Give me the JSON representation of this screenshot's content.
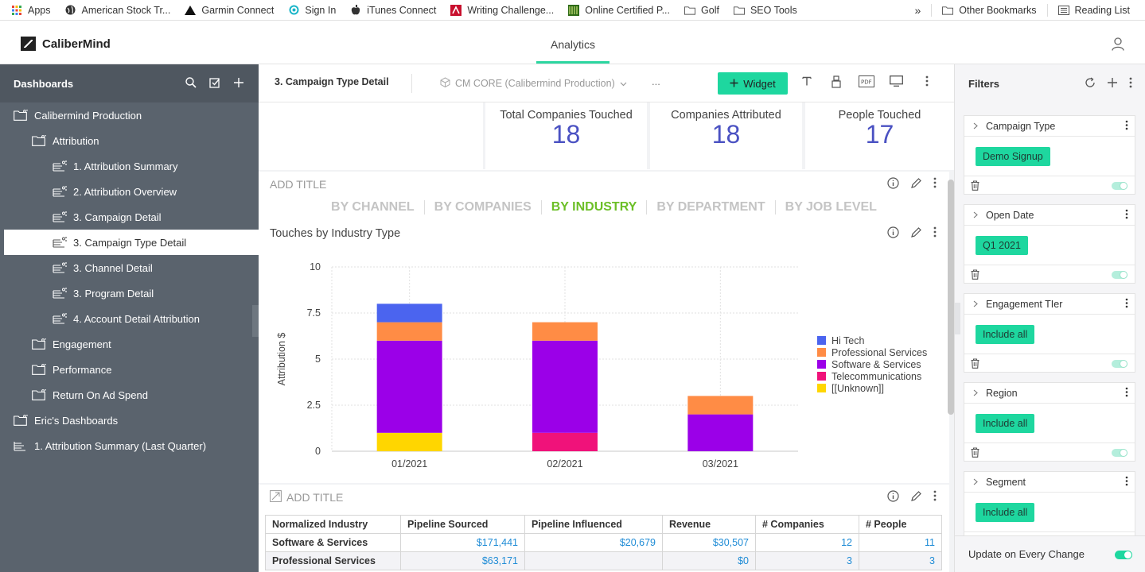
{
  "bookmarks": {
    "items": [
      {
        "label": "Apps",
        "icon": "apps-grid-icon"
      },
      {
        "label": "American Stock Tr...",
        "icon": "globe-icon"
      },
      {
        "label": "Garmin Connect",
        "icon": "garmin-triangle-icon"
      },
      {
        "label": "Sign In",
        "icon": "swirl-icon"
      },
      {
        "label": "iTunes Connect",
        "icon": "apple-icon"
      },
      {
        "label": "Writing Challenge...",
        "icon": "red-logo-icon"
      },
      {
        "label": "Online Certified P...",
        "icon": "green-logo-icon"
      },
      {
        "label": "Golf",
        "icon": "folder-icon"
      },
      {
        "label": "SEO Tools",
        "icon": "folder-icon"
      }
    ],
    "overflow": "»",
    "other_bookmarks": "Other Bookmarks",
    "reading_list": "Reading List"
  },
  "header": {
    "brand": "CaliberMind",
    "tab": "Analytics",
    "accent_color": "#2bd6a0"
  },
  "sidebar": {
    "title": "Dashboards",
    "items": [
      {
        "label": "Calibermind Production",
        "level": 0,
        "icon": "folder-share-icon"
      },
      {
        "label": "Attribution",
        "level": 1,
        "icon": "folder-share-icon"
      },
      {
        "label": "1. Attribution Summary",
        "level": 2,
        "icon": "dashboard-share-icon"
      },
      {
        "label": "2. Attribution Overview",
        "level": 2,
        "icon": "dashboard-share-icon"
      },
      {
        "label": "3. Campaign Detail",
        "level": 2,
        "icon": "dashboard-share-icon"
      },
      {
        "label": "3. Campaign Type Detail",
        "level": 2,
        "icon": "dashboard-share-icon",
        "active": true
      },
      {
        "label": "3. Channel Detail",
        "level": 2,
        "icon": "dashboard-share-icon"
      },
      {
        "label": "3. Program Detail",
        "level": 2,
        "icon": "dashboard-share-icon"
      },
      {
        "label": "4. Account Detail Attribution",
        "level": 2,
        "icon": "dashboard-share-icon"
      },
      {
        "label": "Engagement",
        "level": 1,
        "icon": "folder-share-icon"
      },
      {
        "label": "Performance",
        "level": 1,
        "icon": "folder-share-icon"
      },
      {
        "label": "Return On Ad Spend",
        "level": 1,
        "icon": "folder-share-icon"
      },
      {
        "label": "Eric's Dashboards",
        "level": 0,
        "icon": "folder-share-icon"
      },
      {
        "label": "1. Attribution Summary (Last Quarter)",
        "level": 0,
        "icon": "dashboard-icon"
      }
    ]
  },
  "toolbar": {
    "dashboard_title": "3. Campaign Type Detail",
    "datasource": "CM CORE (Calibermind Production)",
    "more": "...",
    "widget_label": "Widget",
    "widget_color": "#1ed79f"
  },
  "kpis": [
    {
      "label": "Total Companies Touched",
      "value": "18"
    },
    {
      "label": "Companies Attributed",
      "value": "18"
    },
    {
      "label": "People Touched",
      "value": "17"
    }
  ],
  "tabs_panel": {
    "title": "ADD TITLE",
    "tabs": [
      "BY CHANNEL",
      "BY COMPANIES",
      "BY INDUSTRY",
      "BY DEPARTMENT",
      "BY JOB LEVEL"
    ],
    "active_tab": "BY INDUSTRY",
    "active_color": "#6cbf27"
  },
  "chart_panel": {
    "title": "Touches by Industry Type"
  },
  "chart_data": {
    "type": "bar",
    "stacked": true,
    "title": "Touches by Industry Type",
    "ylabel": "Attribution $",
    "xlabel": "",
    "categories": [
      "01/2021",
      "02/2021",
      "03/2021"
    ],
    "ylim": [
      0,
      10
    ],
    "yticks": [
      "0",
      "2.5",
      "5",
      "7.5",
      "10"
    ],
    "grid": true,
    "legend_position": "right",
    "series": [
      {
        "name": "[[Unknown]]",
        "color": "#ffd600",
        "values": [
          1,
          0,
          0
        ]
      },
      {
        "name": "Telecommunications",
        "color": "#f0127a",
        "values": [
          0,
          1,
          0
        ]
      },
      {
        "name": "Software & Services",
        "color": "#9b00e8",
        "values": [
          5,
          5,
          2
        ]
      },
      {
        "name": "Professional Services",
        "color": "#ff8c45",
        "values": [
          1,
          1,
          1
        ]
      },
      {
        "name": "Hi Tech",
        "color": "#4b64ef",
        "values": [
          1,
          0,
          0
        ]
      }
    ],
    "legend_order": [
      "Hi Tech",
      "Professional Services",
      "Software & Services",
      "Telecommunications",
      "[[Unknown]]"
    ]
  },
  "table_panel": {
    "title": "ADD TITLE",
    "columns": [
      "Normalized Industry",
      "Pipeline Sourced",
      "Pipeline Influenced",
      "Revenue",
      "# Companies",
      "# People"
    ],
    "rows": [
      [
        "Software & Services",
        "$171,441",
        "$20,679",
        "$30,507",
        "12",
        "11"
      ],
      [
        "Professional Services",
        "$63,171",
        "",
        "$0",
        "3",
        "3"
      ]
    ]
  },
  "filters": {
    "title": "Filters",
    "cards": [
      {
        "label": "Campaign Type",
        "chip": "Demo Signup"
      },
      {
        "label": "Open Date",
        "chip": "Q1 2021"
      },
      {
        "label": "Engagement TIer",
        "chip": "Include all"
      },
      {
        "label": "Region",
        "chip": "Include all"
      },
      {
        "label": "Segment",
        "chip": "Include all"
      }
    ],
    "footer": "Update on Every Change"
  }
}
